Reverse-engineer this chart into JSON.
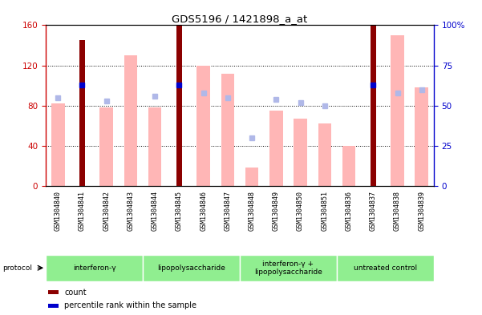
{
  "title": "GDS5196 / 1421898_a_at",
  "samples": [
    "GSM1304840",
    "GSM1304841",
    "GSM1304842",
    "GSM1304843",
    "GSM1304844",
    "GSM1304845",
    "GSM1304846",
    "GSM1304847",
    "GSM1304848",
    "GSM1304849",
    "GSM1304850",
    "GSM1304851",
    "GSM1304836",
    "GSM1304837",
    "GSM1304838",
    "GSM1304839"
  ],
  "count_values": [
    0,
    145,
    0,
    0,
    0,
    160,
    0,
    0,
    0,
    0,
    0,
    0,
    0,
    160,
    0,
    0
  ],
  "value_absent": [
    82,
    0,
    78,
    130,
    78,
    0,
    120,
    112,
    18,
    75,
    67,
    62,
    40,
    0,
    150,
    98
  ],
  "rank_absent": [
    55,
    0,
    53,
    0,
    56,
    0,
    58,
    55,
    30,
    54,
    52,
    50,
    0,
    0,
    58,
    60
  ],
  "percentile_rank": [
    0,
    63,
    0,
    0,
    0,
    63,
    0,
    0,
    0,
    0,
    0,
    0,
    0,
    63,
    0,
    0
  ],
  "protocols": [
    {
      "label": "interferon-γ",
      "start": 0,
      "end": 4
    },
    {
      "label": "lipopolysaccharide",
      "start": 4,
      "end": 8
    },
    {
      "label": "interferon-γ +\nlipopolysaccharide",
      "start": 8,
      "end": 12
    },
    {
      "label": "untreated control",
      "start": 12,
      "end": 16
    }
  ],
  "ylim_left": [
    0,
    160
  ],
  "ylim_right": [
    0,
    100
  ],
  "left_ticks": [
    0,
    40,
    80,
    120,
    160
  ],
  "right_ticks": [
    0,
    25,
    50,
    75,
    100
  ],
  "right_tick_labels": [
    "0",
    "25",
    "50",
    "75",
    "100%"
  ],
  "left_color": "#cc0000",
  "right_color": "#0000cc",
  "count_color": "#8b0000",
  "value_absent_color": "#ffb6b6",
  "rank_absent_color": "#b0b8e8",
  "percentile_color": "#0000cc",
  "bg_color": "#ffffff",
  "plot_bg": "#ffffff",
  "proto_color": "#90ee90",
  "label_bg": "#d0d0d0"
}
